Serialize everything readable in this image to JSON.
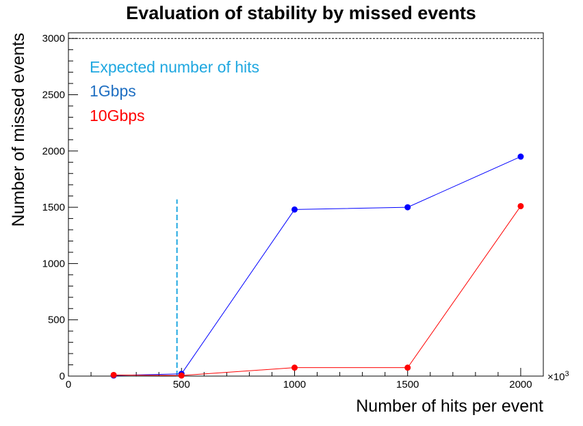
{
  "chart_data": {
    "type": "line",
    "title": "Evaluation of stability by missed events",
    "xlabel": "Number of hits per event",
    "ylabel": "Number of missed events",
    "x_multiplier_label": "×10",
    "x_multiplier_exponent": "3",
    "xlim": [
      0,
      2100
    ],
    "ylim": [
      0,
      3050
    ],
    "x_ticks": [
      0,
      500,
      1000,
      1500,
      2000
    ],
    "y_ticks": [
      0,
      500,
      1000,
      1500,
      2000,
      2500,
      3000
    ],
    "x_tick_labels": [
      "0",
      "500",
      "1000",
      "1500",
      "2000"
    ],
    "y_tick_labels": [
      "0",
      "500",
      "1000",
      "1500",
      "2000",
      "2500",
      "3000"
    ],
    "grid": false,
    "legend_position": "top-left",
    "series": [
      {
        "name": "1Gbps",
        "color": "#0000ff",
        "label_color": "#1f6fc2",
        "x": [
          200,
          500,
          1000,
          1500,
          2000
        ],
        "y": [
          5,
          20,
          1480,
          1500,
          1950
        ]
      },
      {
        "name": "10Gbps",
        "color": "#ff0000",
        "label_color": "#ff0000",
        "x": [
          200,
          500,
          1000,
          1500,
          2000
        ],
        "y": [
          10,
          5,
          75,
          75,
          1510
        ]
      }
    ],
    "reference_lines": [
      {
        "name": "Expected number of hits",
        "orientation": "vertical",
        "x": 480,
        "y_range": [
          0,
          1570
        ],
        "color": "#1ea7e0",
        "style": "dashed"
      },
      {
        "orientation": "horizontal",
        "y": 3000,
        "color": "#000000",
        "style": "dotted"
      }
    ]
  }
}
